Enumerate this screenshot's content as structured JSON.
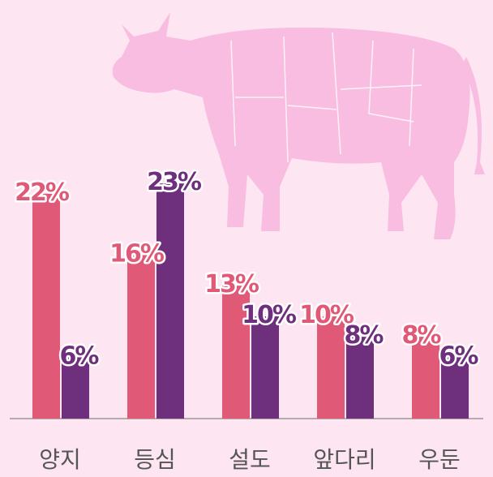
{
  "chart_data": {
    "type": "bar",
    "categories": [
      "양지",
      "등심",
      "설도",
      "앞다리",
      "우둔"
    ],
    "series": [
      {
        "color": "#e05a78",
        "values": [
          22,
          16,
          13,
          10,
          8
        ],
        "value_labels": [
          "22%",
          "16%",
          "13%",
          "10%",
          "8%"
        ]
      },
      {
        "color": "#6e2f7d",
        "values": [
          6,
          23,
          10,
          8,
          6
        ],
        "value_labels": [
          "6%",
          "23%",
          "10%",
          "8%",
          "6%"
        ]
      }
    ]
  }
}
